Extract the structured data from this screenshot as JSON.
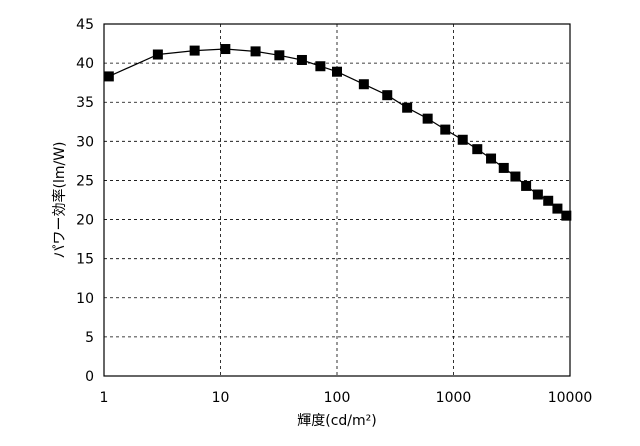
{
  "chart_data": {
    "type": "scatter",
    "xscale": "log",
    "xlim": [
      1,
      10000
    ],
    "ylim": [
      0,
      45
    ],
    "xticks": [
      1,
      10,
      100,
      1000,
      10000
    ],
    "yticks": [
      0,
      5,
      10,
      15,
      20,
      25,
      30,
      35,
      40,
      45
    ],
    "xlabel": "輝度(cd/m²)",
    "ylabel": "パワー効率(lm/W)",
    "grid": true,
    "line_color": "#000000",
    "marker_color": "#000000",
    "marker": "square",
    "series": [
      {
        "x": [
          1.1,
          2.9,
          6.0,
          11.0,
          20.0,
          32.0,
          50.0,
          72.0,
          100.0,
          170.0,
          270.0,
          400.0,
          600.0,
          850.0,
          1200.0,
          1600.0,
          2100.0,
          2700.0,
          3400.0,
          4200.0,
          5300.0,
          6500.0,
          7800.0,
          9300.0
        ],
        "y": [
          38.3,
          41.1,
          41.6,
          41.8,
          41.5,
          41.0,
          40.4,
          39.6,
          38.9,
          37.3,
          35.9,
          34.3,
          32.9,
          31.5,
          30.2,
          29.0,
          27.8,
          26.6,
          25.5,
          24.3,
          23.2,
          22.4,
          21.4,
          20.5
        ]
      }
    ]
  }
}
